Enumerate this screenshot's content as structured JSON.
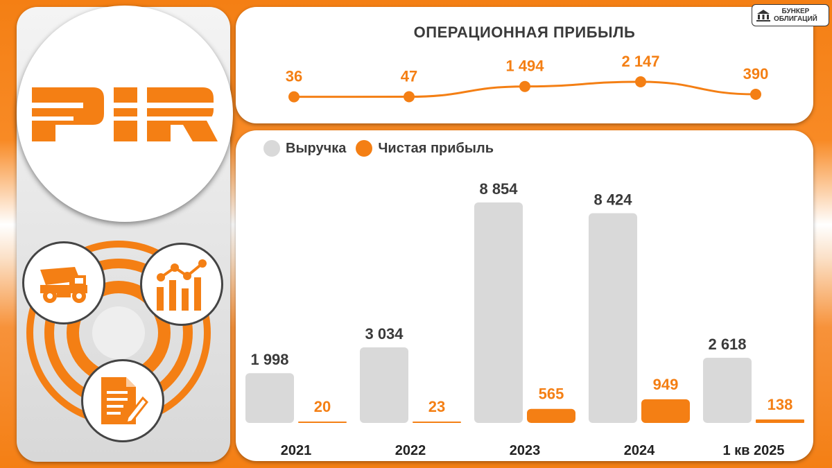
{
  "badge": {
    "line1": "БУНКЕР",
    "line2": "ОБЛИГАЦИЙ"
  },
  "logo": {
    "text": "PIR"
  },
  "icons": [
    "dump-truck-icon",
    "growth-chart-icon",
    "document-pen-icon"
  ],
  "colors": {
    "accent": "#f47f14",
    "revenue": "#d9d9d9",
    "text": "#3a3a3a"
  },
  "operating_profit": {
    "title": "ОПЕРАЦИОННАЯ ПРИБЫЛЬ",
    "labels": [
      "36",
      "47",
      "1 494",
      "2 147",
      "390"
    ]
  },
  "legend": {
    "revenue": "Выручка",
    "net_profit": "Чистая прибыль"
  },
  "chart_data": [
    {
      "type": "line",
      "title": "ОПЕРАЦИОННАЯ ПРИБЫЛЬ",
      "categories": [
        "2021",
        "2022",
        "2023",
        "2024",
        "1 кв 2025"
      ],
      "series": [
        {
          "name": "",
          "values": [
            36,
            47,
            1494,
            2147,
            390
          ]
        }
      ]
    },
    {
      "type": "bar",
      "categories": [
        "2021",
        "2022",
        "2023",
        "2024",
        "1 кв 2025"
      ],
      "series": [
        {
          "name": "Выручка",
          "values": [
            1998,
            3034,
            8854,
            8424,
            2618
          ],
          "labels": [
            "1 998",
            "3 034",
            "8 854",
            "8 424",
            "2 618"
          ]
        },
        {
          "name": "Чистая прибыль",
          "values": [
            20,
            23,
            565,
            949,
            138
          ],
          "labels": [
            "20",
            "23",
            "565",
            "949",
            "138"
          ]
        }
      ],
      "legend_position": "top-left",
      "grid": false
    }
  ]
}
